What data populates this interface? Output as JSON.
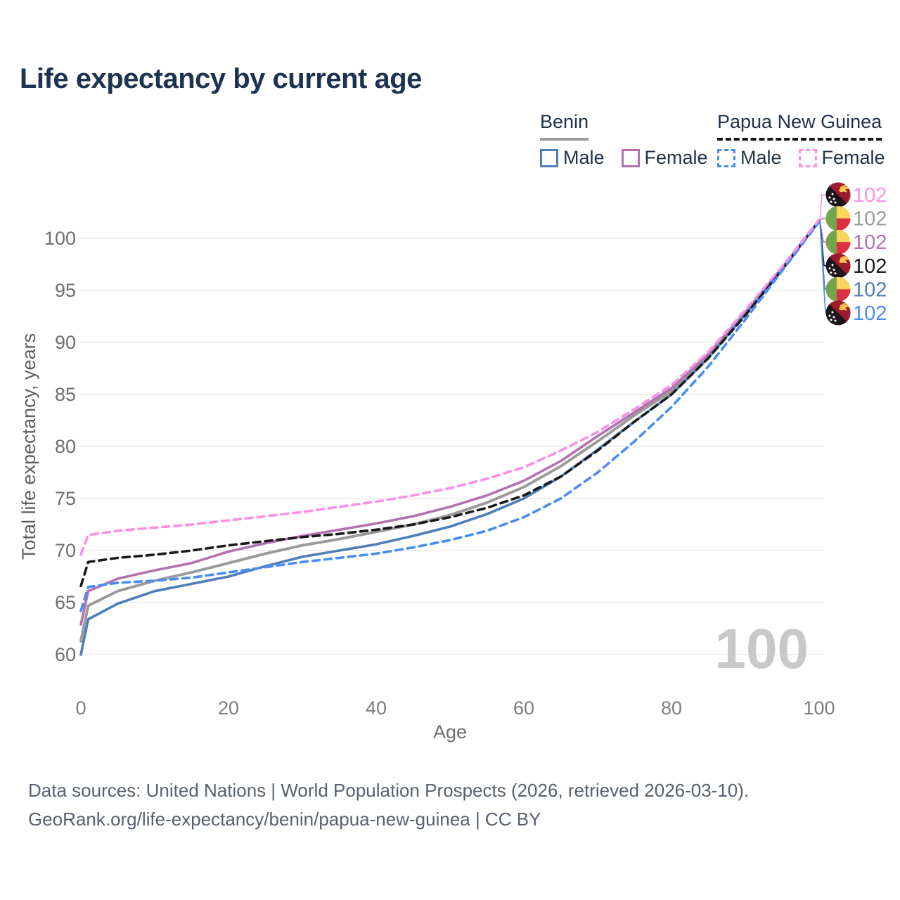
{
  "header": {
    "title": "Life expectancy by current age"
  },
  "legend": {
    "groups": [
      {
        "country": "Benin",
        "line_style": "solid",
        "underline_color": "#9b9b9b",
        "items": [
          {
            "label": "Male",
            "color": "#4d7eb8",
            "dashed": false
          },
          {
            "label": "Female",
            "color": "#b172b0",
            "dashed": false
          }
        ]
      },
      {
        "country": "Papua New Guinea",
        "line_style": "dashed",
        "underline_color": "#151515",
        "items": [
          {
            "label": "Male",
            "color": "#4a8df2",
            "dashed": true
          },
          {
            "label": "Female",
            "color": "#fb8fe6",
            "dashed": true
          }
        ]
      }
    ]
  },
  "chart_data": {
    "type": "line",
    "title": "Life expectancy by current age",
    "xlabel": "Age",
    "ylabel": "Total life expectancy, years",
    "x_ticks": [
      0,
      20,
      40,
      60,
      80,
      100
    ],
    "y_ticks": [
      60,
      65,
      70,
      75,
      80,
      85,
      90,
      95,
      100
    ],
    "xlim": [
      0,
      100
    ],
    "ylim": [
      58,
      104
    ],
    "grid": "horizontal",
    "legend_position": "top-right",
    "watermark_age": "100",
    "ages": [
      0,
      1,
      5,
      10,
      15,
      20,
      25,
      30,
      35,
      40,
      45,
      50,
      55,
      60,
      65,
      70,
      75,
      80,
      85,
      90,
      95,
      100
    ],
    "series": [
      {
        "name": "Benin — Total",
        "country": "Benin",
        "sex": "Total",
        "flag": "benin",
        "color": "#9b9b9b",
        "dashed": false,
        "width": 4,
        "label_value": "102",
        "label_slot": 1,
        "values": [
          61.3,
          64.7,
          66.1,
          67.1,
          67.9,
          68.8,
          69.7,
          70.5,
          71.1,
          71.8,
          72.5,
          73.4,
          74.6,
          76.1,
          78.1,
          80.5,
          83.0,
          85.3,
          88.7,
          92.8,
          97.1,
          101.7
        ]
      },
      {
        "name": "Benin — Female",
        "country": "Benin",
        "sex": "Female",
        "flag": "benin",
        "color": "#b172b0",
        "dashed": false,
        "width": 3.6,
        "label_value": "102",
        "label_slot": 2,
        "values": [
          62.9,
          66.1,
          67.3,
          68.1,
          68.8,
          69.9,
          70.7,
          71.4,
          72.0,
          72.6,
          73.3,
          74.2,
          75.3,
          76.7,
          78.6,
          81.0,
          83.3,
          85.6,
          88.9,
          92.9,
          97.2,
          101.7
        ]
      },
      {
        "name": "Benin — Male",
        "country": "Benin",
        "sex": "Male",
        "flag": "benin",
        "color": "#4d7eb8",
        "dashed": false,
        "width": 3.6,
        "label_value": "102",
        "label_slot": 4,
        "values": [
          60.0,
          63.4,
          64.9,
          66.1,
          66.8,
          67.5,
          68.5,
          69.4,
          70.0,
          70.6,
          71.4,
          72.3,
          73.5,
          75.0,
          77.1,
          79.7,
          82.4,
          85.0,
          88.5,
          92.7,
          97.1,
          101.7
        ]
      },
      {
        "name": "Papua New Guinea — Total",
        "country": "Papua New Guinea",
        "sex": "Total",
        "flag": "png",
        "color": "#1a1a1a",
        "dashed": true,
        "width": 3.6,
        "label_value": "102",
        "label_slot": 3,
        "values": [
          66.6,
          68.9,
          69.3,
          69.6,
          70.0,
          70.5,
          70.9,
          71.3,
          71.6,
          72.0,
          72.5,
          73.2,
          74.1,
          75.3,
          77.1,
          79.6,
          82.4,
          85.0,
          88.5,
          92.6,
          97.0,
          101.7
        ]
      },
      {
        "name": "Papua New Guinea — Male",
        "country": "Papua New Guinea",
        "sex": "Male",
        "flag": "png",
        "color": "#4a8df2",
        "dashed": true,
        "width": 3.6,
        "label_value": "102",
        "label_slot": 5,
        "values": [
          64.2,
          66.5,
          66.9,
          67.1,
          67.4,
          67.9,
          68.4,
          68.9,
          69.3,
          69.7,
          70.3,
          71.0,
          71.9,
          73.2,
          75.0,
          77.5,
          80.5,
          83.8,
          87.7,
          92.2,
          96.9,
          101.6
        ]
      },
      {
        "name": "Papua New Guinea — Female",
        "country": "Papua New Guinea",
        "sex": "Female",
        "flag": "png",
        "color": "#fb8fe6",
        "dashed": true,
        "width": 3.6,
        "label_value": "102",
        "label_slot": 0,
        "values": [
          69.6,
          71.5,
          71.9,
          72.2,
          72.5,
          72.9,
          73.3,
          73.7,
          74.2,
          74.7,
          75.3,
          76.0,
          76.9,
          78.0,
          79.6,
          81.4,
          83.6,
          85.9,
          89.1,
          93.1,
          97.3,
          101.8
        ]
      }
    ],
    "flag_colors": {
      "benin": {
        "green": "#74a44c",
        "yellow": "#fbd45c",
        "red": "#dc2f41"
      },
      "png": {
        "black": "#1b1419",
        "red": "#9c1b2f",
        "bird": "#f6c94a",
        "stars": "#ffffff"
      }
    }
  },
  "footer": {
    "line1": "Data sources: United Nations | World Population Prospects (2026, retrieved 2026-03-10).",
    "line2": "GeoRank.org/life-expectancy/benin/papua-new-guinea | CC BY"
  }
}
